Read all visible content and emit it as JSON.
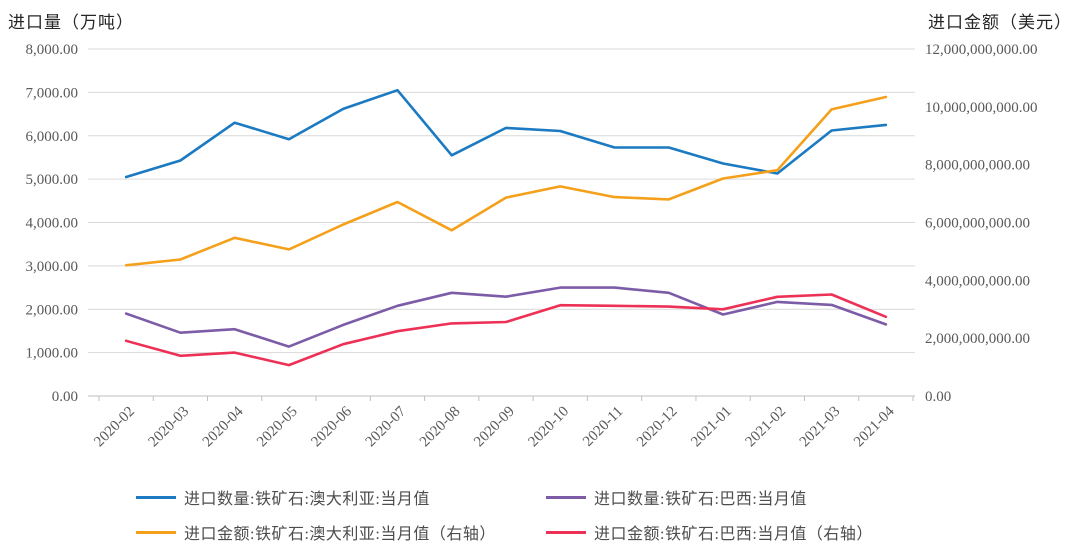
{
  "chart_data": {
    "type": "line",
    "title": "",
    "left_axis": {
      "title": "进口量（万吨）",
      "range": [
        0,
        8000
      ],
      "tick_labels": [
        "0.00",
        "1,000.00",
        "2,000.00",
        "3,000.00",
        "4,000.00",
        "5,000.00",
        "6,000.00",
        "7,000.00",
        "8,000.00"
      ]
    },
    "right_axis": {
      "title": "进口金额（美元）",
      "range": [
        0,
        12000000000
      ],
      "tick_labels": [
        "0.00",
        "2,000,000,000.00",
        "4,000,000,000.00",
        "6,000,000,000.00",
        "8,000,000,000.00",
        "10,000,000,000.00",
        "12,000,000,000.00"
      ]
    },
    "categories": [
      "2020-02",
      "2020-03",
      "2020-04",
      "2020-05",
      "2020-06",
      "2020-07",
      "2020-08",
      "2020-09",
      "2020-10",
      "2020-11",
      "2020-12",
      "2021-01",
      "2021-02",
      "2021-03",
      "2021-04"
    ],
    "series": [
      {
        "name": "进口数量:铁矿石:澳大利亚:当月值",
        "axis": "left",
        "color": "#1B7AC1",
        "values": [
          5050,
          5430,
          6300,
          5920,
          6620,
          7050,
          5550,
          6180,
          6110,
          5730,
          5730,
          5360,
          5130,
          6120,
          6250
        ]
      },
      {
        "name": "进口数量:铁矿石:巴西:当月值",
        "axis": "left",
        "color": "#7D5CA7",
        "values": [
          1900,
          1460,
          1540,
          1140,
          1640,
          2080,
          2380,
          2290,
          2500,
          2500,
          2380,
          1880,
          2170,
          2100,
          1650
        ]
      },
      {
        "name": "进口金额:铁矿石:澳大利亚:当月值（右轴）",
        "axis": "right",
        "color": "#F5A01B",
        "values": [
          4520000000,
          4720000000,
          5470000000,
          5070000000,
          5930000000,
          6710000000,
          5730000000,
          6860000000,
          7250000000,
          6880000000,
          6800000000,
          7520000000,
          7810000000,
          9910000000,
          10340000000
        ]
      },
      {
        "name": "进口金额:铁矿石:巴西:当月值（右轴）",
        "axis": "right",
        "color": "#ED3156",
        "values": [
          1910000000,
          1390000000,
          1500000000,
          1070000000,
          1790000000,
          2240000000,
          2510000000,
          2560000000,
          3140000000,
          3120000000,
          3090000000,
          3000000000,
          3430000000,
          3510000000,
          2740000000
        ]
      }
    ],
    "legend_position": "bottom",
    "grid": "horizontal",
    "style": {
      "gridline_color": "#D9D9D9",
      "axis_line_color": "#BFBFBF",
      "tick_text_color": "#595959",
      "title_text_color": "#262626",
      "background": "#FFFFFF"
    }
  }
}
